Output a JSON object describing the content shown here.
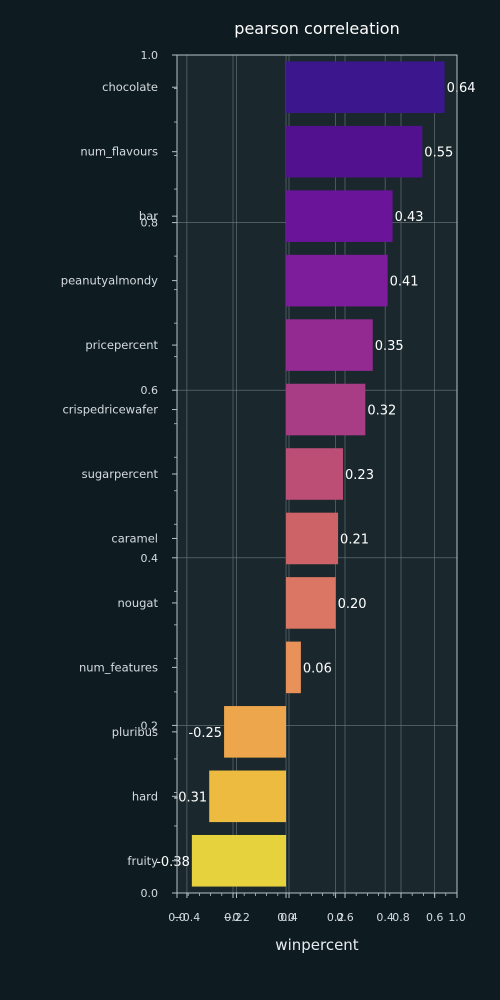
{
  "chart_data": {
    "type": "bar",
    "orientation": "horizontal",
    "title": "pearson correleation",
    "xlabel": "winpercent",
    "ylabel": "",
    "categories": [
      "chocolate",
      "num_flavours",
      "bar",
      "peanutyalmondy",
      "pricepercent",
      "crispedricewafer",
      "sugarpercent",
      "caramel",
      "nougat",
      "num_features",
      "pluribus",
      "hard",
      "fruity"
    ],
    "values": [
      0.64,
      0.55,
      0.43,
      0.41,
      0.35,
      0.32,
      0.23,
      0.21,
      0.2,
      0.06,
      -0.25,
      -0.31,
      -0.38
    ],
    "value_labels": [
      "0.64",
      "0.55",
      "0.43",
      "0.41",
      "0.35",
      "0.32",
      "0.23",
      "0.21",
      "0.20",
      "0.06",
      "-0.25",
      "-0.31",
      "-0.38"
    ],
    "xlim": [
      -0.44,
      0.69
    ],
    "x_ticks": [
      "−0.4",
      "−0.2",
      "0.0",
      "0.2",
      "0.4",
      "0.6"
    ],
    "overlay_x_ticks": [
      "0.0",
      "0.2",
      "0.4",
      "0.6",
      "0.8",
      "1.0"
    ],
    "overlay_y_ticks": [
      "0.0",
      "0.2",
      "0.4",
      "0.6",
      "0.8",
      "1.0"
    ],
    "grid": true,
    "colormap": "plasma",
    "bar_colors": [
      "#3c168d",
      "#52118e",
      "#6a1499",
      "#7e1d9b",
      "#932a91",
      "#a83c85",
      "#bc4e76",
      "#cd6367",
      "#db7665",
      "#e8925a",
      "#eda64c",
      "#edbb40",
      "#e6d23c"
    ],
    "colors": {
      "background": "#0e1c22",
      "plot_background": "#1a282e",
      "grid": "#6e7a80",
      "axis": "#b8c2c6",
      "text": "#ffffff",
      "tick_text": "#d5dbde"
    }
  }
}
